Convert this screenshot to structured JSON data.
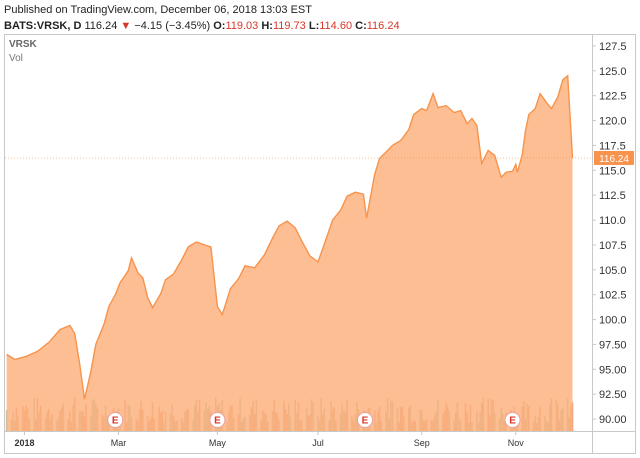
{
  "header": {
    "published": "Published on TradingView.com, December 06, 2018 13:03 EST",
    "symbol": "BATS:VRSK, D",
    "last": "116.24",
    "change": "−4.15 (−3.45%)",
    "open_label": "O:",
    "open": "119.03",
    "high_label": "H:",
    "high": "119.73",
    "low_label": "L:",
    "low": "114.60",
    "close_label": "C:",
    "close": "116.24"
  },
  "legend": {
    "symbol": "VRSK",
    "volume": "Vol"
  },
  "colors": {
    "area": "#fbb07a",
    "line": "#f7934c",
    "down": "#d9362a",
    "price_label_bg": "#f7934c",
    "volume_up": "#a5b596",
    "volume_down": "#f2845c"
  },
  "chart_data": {
    "type": "area",
    "ylim": [
      88.8,
      128.6
    ],
    "yticks": [
      "127.5",
      "125.0",
      "122.5",
      "120.0",
      "117.5",
      "115.0",
      "112.5",
      "110.0",
      "107.5",
      "105.0",
      "102.5",
      "100.0",
      "97.50",
      "95.00",
      "92.50",
      "90.00"
    ],
    "ytick_values": [
      127.5,
      125.0,
      122.5,
      120.0,
      117.5,
      115.0,
      112.5,
      110.0,
      107.5,
      105.0,
      102.5,
      100.0,
      97.5,
      95.0,
      92.5,
      90.0
    ],
    "xticks": [
      {
        "label": "2018",
        "x": "2018-01-02"
      },
      {
        "label": "Mar",
        "x": "2018-03-01"
      },
      {
        "label": "May",
        "x": "2018-05-01"
      },
      {
        "label": "Jul",
        "x": "2018-07-02"
      },
      {
        "label": "Sep",
        "x": "2018-09-04"
      },
      {
        "label": "Nov",
        "x": "2018-11-01"
      }
    ],
    "last_price": 116.24,
    "last_price_label": "116.24",
    "earnings_marker": "E",
    "earnings_dates": [
      "2018-02-27",
      "2018-05-01",
      "2018-07-31",
      "2018-10-30"
    ],
    "series": [
      {
        "points": [
          [
            "2017-12-22",
            96.5
          ],
          [
            "2017-12-27",
            96.0
          ],
          [
            "2018-01-03",
            96.3
          ],
          [
            "2018-01-10",
            96.8
          ],
          [
            "2018-01-17",
            97.7
          ],
          [
            "2018-01-24",
            99.0
          ],
          [
            "2018-01-30",
            99.4
          ],
          [
            "2018-02-02",
            98.6
          ],
          [
            "2018-02-05",
            95.6
          ],
          [
            "2018-02-08",
            92.0
          ],
          [
            "2018-02-12",
            94.8
          ],
          [
            "2018-02-15",
            97.5
          ],
          [
            "2018-02-20",
            99.5
          ],
          [
            "2018-02-23",
            101.3
          ],
          [
            "2018-02-27",
            102.5
          ],
          [
            "2018-03-02",
            103.7
          ],
          [
            "2018-03-07",
            104.9
          ],
          [
            "2018-03-09",
            106.2
          ],
          [
            "2018-03-13",
            104.7
          ],
          [
            "2018-03-16",
            104.2
          ],
          [
            "2018-03-19",
            102.2
          ],
          [
            "2018-03-22",
            101.2
          ],
          [
            "2018-03-27",
            102.6
          ],
          [
            "2018-03-30",
            104.0
          ],
          [
            "2018-04-04",
            104.6
          ],
          [
            "2018-04-09",
            106.0
          ],
          [
            "2018-04-13",
            107.3
          ],
          [
            "2018-04-18",
            107.8
          ],
          [
            "2018-04-23",
            107.5
          ],
          [
            "2018-04-27",
            107.3
          ],
          [
            "2018-05-01",
            101.3
          ],
          [
            "2018-05-04",
            100.5
          ],
          [
            "2018-05-09",
            103.1
          ],
          [
            "2018-05-14",
            104.1
          ],
          [
            "2018-05-18",
            105.4
          ],
          [
            "2018-05-24",
            105.2
          ],
          [
            "2018-05-30",
            106.5
          ],
          [
            "2018-06-04",
            108.2
          ],
          [
            "2018-06-08",
            109.4
          ],
          [
            "2018-06-13",
            109.9
          ],
          [
            "2018-06-18",
            109.2
          ],
          [
            "2018-06-22",
            107.9
          ],
          [
            "2018-06-27",
            106.4
          ],
          [
            "2018-07-02",
            105.8
          ],
          [
            "2018-07-06",
            107.6
          ],
          [
            "2018-07-11",
            110.0
          ],
          [
            "2018-07-16",
            111.0
          ],
          [
            "2018-07-20",
            112.4
          ],
          [
            "2018-07-25",
            112.8
          ],
          [
            "2018-07-30",
            112.6
          ],
          [
            "2018-08-01",
            110.2
          ],
          [
            "2018-08-06",
            114.6
          ],
          [
            "2018-08-09",
            116.2
          ],
          [
            "2018-08-14",
            117.0
          ],
          [
            "2018-08-17",
            117.5
          ],
          [
            "2018-08-22",
            118.0
          ],
          [
            "2018-08-27",
            119.1
          ],
          [
            "2018-08-30",
            120.6
          ],
          [
            "2018-09-04",
            121.2
          ],
          [
            "2018-09-07",
            121.0
          ],
          [
            "2018-09-11",
            122.7
          ],
          [
            "2018-09-14",
            121.3
          ],
          [
            "2018-09-19",
            121.5
          ],
          [
            "2018-09-24",
            120.8
          ],
          [
            "2018-09-28",
            121.0
          ],
          [
            "2018-10-02",
            119.7
          ],
          [
            "2018-10-05",
            120.2
          ],
          [
            "2018-10-08",
            119.5
          ],
          [
            "2018-10-11",
            115.7
          ],
          [
            "2018-10-15",
            117.0
          ],
          [
            "2018-10-19",
            116.5
          ],
          [
            "2018-10-23",
            114.3
          ],
          [
            "2018-10-26",
            114.8
          ],
          [
            "2018-10-30",
            114.9
          ],
          [
            "2018-11-01",
            115.6
          ],
          [
            "2018-11-02",
            114.8
          ],
          [
            "2018-11-05",
            116.6
          ],
          [
            "2018-11-07",
            119.0
          ],
          [
            "2018-11-09",
            120.6
          ],
          [
            "2018-11-13",
            121.2
          ],
          [
            "2018-11-16",
            122.7
          ],
          [
            "2018-11-20",
            121.8
          ],
          [
            "2018-11-23",
            121.2
          ],
          [
            "2018-11-27",
            122.4
          ],
          [
            "2018-11-30",
            124.1
          ],
          [
            "2018-12-03",
            124.5
          ],
          [
            "2018-12-06",
            116.24
          ]
        ]
      }
    ]
  }
}
